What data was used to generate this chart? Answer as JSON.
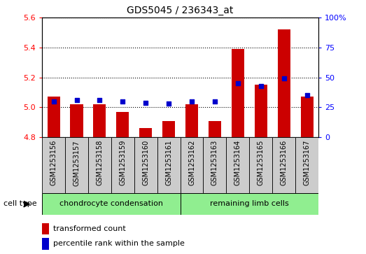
{
  "title": "GDS5045 / 236343_at",
  "samples": [
    "GSM1253156",
    "GSM1253157",
    "GSM1253158",
    "GSM1253159",
    "GSM1253160",
    "GSM1253161",
    "GSM1253162",
    "GSM1253163",
    "GSM1253164",
    "GSM1253165",
    "GSM1253166",
    "GSM1253167"
  ],
  "transformed_count": [
    5.07,
    5.02,
    5.02,
    4.97,
    4.86,
    4.91,
    5.02,
    4.91,
    5.39,
    5.15,
    5.52,
    5.07
  ],
  "percentile_rank": [
    30,
    31,
    31,
    30,
    29,
    28,
    30,
    30,
    45,
    43,
    49,
    35
  ],
  "ylim_left": [
    4.8,
    5.6
  ],
  "ylim_right": [
    0,
    100
  ],
  "yticks_left": [
    4.8,
    5.0,
    5.2,
    5.4,
    5.6
  ],
  "yticks_right": [
    0,
    25,
    50,
    75,
    100
  ],
  "ytick_labels_right": [
    "0",
    "25",
    "50",
    "75",
    "100%"
  ],
  "bar_color": "#cc0000",
  "dot_color": "#0000cc",
  "bar_bottom": 4.8,
  "group1_label": "chondrocyte condensation",
  "group2_label": "remaining limb cells",
  "group1_count": 6,
  "group2_count": 6,
  "cell_type_label": "cell type",
  "legend_bar_label": "transformed count",
  "legend_dot_label": "percentile rank within the sample",
  "group_bg": "#90ee90",
  "tick_label_bg": "#cccccc",
  "title_fontsize": 10,
  "tick_fontsize": 8,
  "label_fontsize": 7,
  "group_fontsize": 8,
  "legend_fontsize": 8
}
